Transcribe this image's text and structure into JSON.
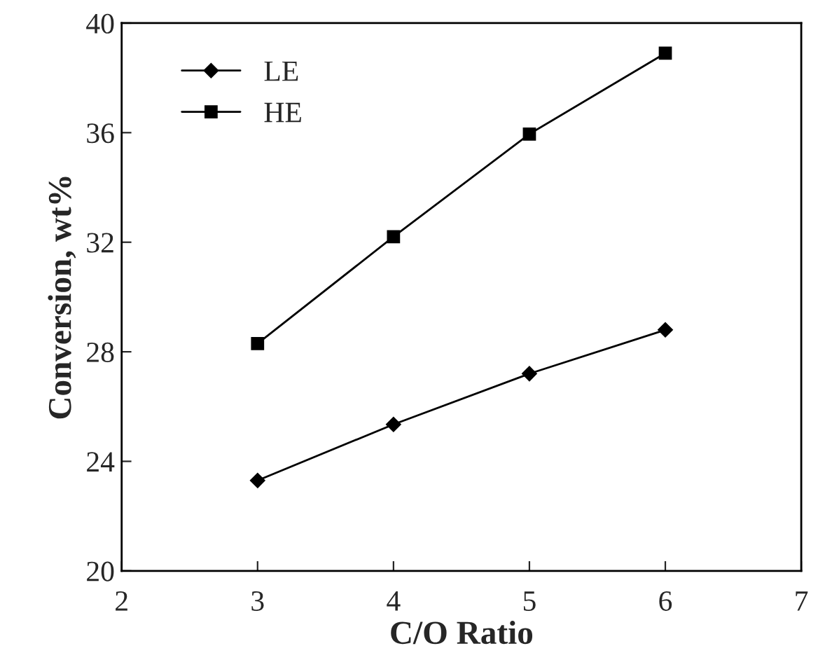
{
  "chart_data": {
    "type": "line",
    "xlabel": "C/O Ratio",
    "ylabel": "Conversion, wt%",
    "x": [
      3,
      4,
      5,
      6
    ],
    "series": [
      {
        "name": "LE",
        "color": "#000000",
        "marker": "diamond",
        "values": [
          23.3,
          25.35,
          27.2,
          28.8
        ]
      },
      {
        "name": "HE",
        "color": "#000000",
        "marker": "square",
        "values": [
          28.3,
          32.2,
          35.95,
          38.9
        ]
      }
    ],
    "xlim": [
      2,
      7
    ],
    "xticks": [
      2,
      3,
      4,
      5,
      6,
      7
    ],
    "ylim": [
      20,
      40
    ],
    "yticks": [
      20,
      24,
      28,
      32,
      36,
      40
    ],
    "grid": false,
    "legend": "top left",
    "line_style": "solid"
  }
}
